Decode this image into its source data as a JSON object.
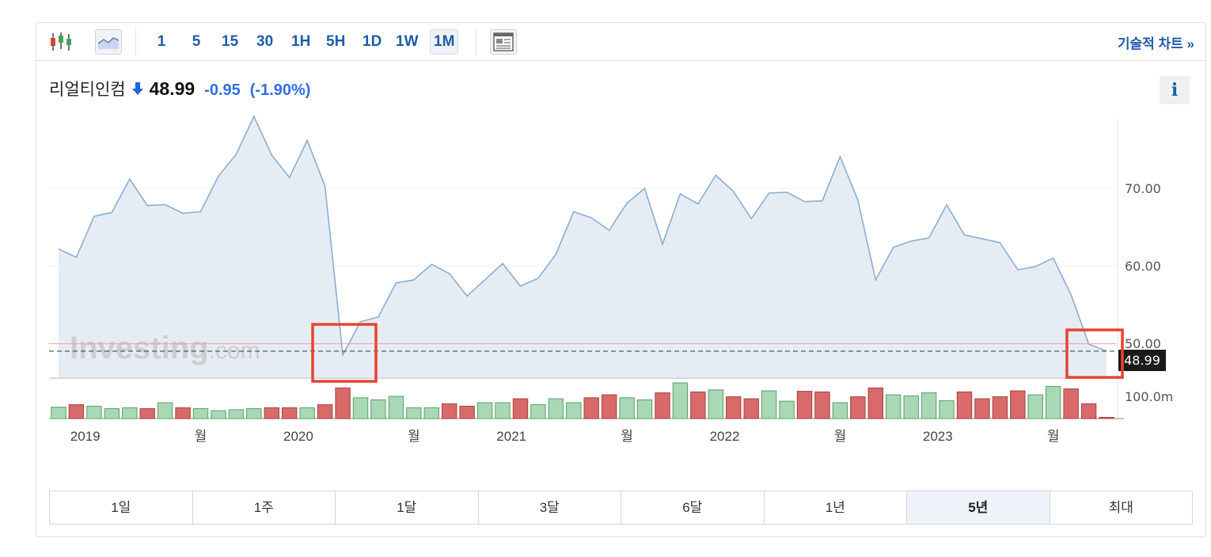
{
  "toolbar": {
    "intervals": [
      "1",
      "5",
      "15",
      "30",
      "1H",
      "5H",
      "1D",
      "1W",
      "1M"
    ],
    "active_interval": "1M",
    "technical_chart_link": "기술적 차트 »",
    "icons": [
      "candlestick-icon",
      "area-chart-icon",
      "layout-template-icon"
    ]
  },
  "quote": {
    "name": "리얼티인컴",
    "direction_icon": "arrow-down-icon",
    "price": "48.99",
    "change": "-0.95",
    "change_pct": "(-1.90%)",
    "info_label": "i"
  },
  "watermark": {
    "brand": "Investing",
    "suffix": ".com"
  },
  "current_price_tag": "48.99",
  "ranges": [
    "1일",
    "1주",
    "1달",
    "3달",
    "6달",
    "1년",
    "5년",
    "최대"
  ],
  "active_range": "5년",
  "colors": {
    "accent": "#1e5ca8",
    "line": "#8aaed2",
    "area_fill": "#e6ecf4",
    "volume_up": "#a8d8b4",
    "volume_down": "#d86a6a",
    "highlight_box": "#e8432f",
    "ref_line": "#f0a0a0"
  },
  "chart_data": {
    "type": "area",
    "x_tick_labels": [
      "2019",
      "월",
      "2020",
      "월",
      "2021",
      "월",
      "2022",
      "월",
      "2023",
      "월"
    ],
    "y_tick_labels": [
      "70.00",
      "60.00",
      "50.00"
    ],
    "volume_axis_label": "100.0m",
    "ylim": [
      45.5,
      79
    ],
    "series": [
      {
        "values": [
          62.2,
          61.1,
          66.4,
          66.9,
          71.2,
          67.8,
          67.9,
          66.8,
          67.0,
          71.6,
          74.4,
          79.3,
          74.3,
          71.4,
          76.2,
          70.3,
          48.5,
          52.8,
          53.4,
          57.8,
          58.2,
          60.2,
          59.0,
          56.1,
          58.2,
          60.3,
          57.4,
          58.4,
          61.5,
          67.0,
          66.2,
          64.6,
          68.1,
          70.0,
          62.8,
          69.3,
          68.0,
          71.7,
          69.6,
          66.1,
          69.4,
          69.5,
          68.3,
          68.4,
          74.1,
          68.5,
          58.2,
          62.4,
          63.2,
          63.6,
          67.9,
          64.0,
          63.5,
          63.0,
          59.5,
          59.9,
          61.0,
          56.3,
          49.9,
          48.99
        ],
        "volume_dir": [
          "u",
          "d",
          "u",
          "u",
          "u",
          "d",
          "u",
          "d",
          "u",
          "u",
          "u",
          "u",
          "d",
          "d",
          "u",
          "d",
          "d",
          "u",
          "u",
          "u",
          "u",
          "u",
          "d",
          "d",
          "u",
          "u",
          "d",
          "u",
          "u",
          "u",
          "d",
          "d",
          "u",
          "u",
          "d",
          "u",
          "d",
          "u",
          "d",
          "d",
          "u",
          "u",
          "d",
          "d",
          "u",
          "d",
          "d",
          "u",
          "u",
          "u",
          "u",
          "d",
          "d",
          "d",
          "d",
          "u",
          "u",
          "d",
          "d",
          "d"
        ],
        "volume": [
          23,
          28,
          25,
          20,
          22,
          20,
          32,
          22,
          20,
          16,
          18,
          20,
          22,
          22,
          22,
          28,
          62,
          42,
          38,
          45,
          22,
          22,
          30,
          25,
          32,
          32,
          40,
          28,
          40,
          32,
          42,
          48,
          42,
          38,
          52,
          72,
          54,
          58,
          44,
          40,
          56,
          35,
          55,
          54,
          32,
          44,
          62,
          48,
          46,
          52,
          36,
          54,
          40,
          44,
          56,
          48,
          65,
          60,
          30,
          2
        ]
      }
    ],
    "reference_line": 49.94,
    "annotations": [
      "highlight-box-2020-drop",
      "highlight-box-latest"
    ]
  }
}
